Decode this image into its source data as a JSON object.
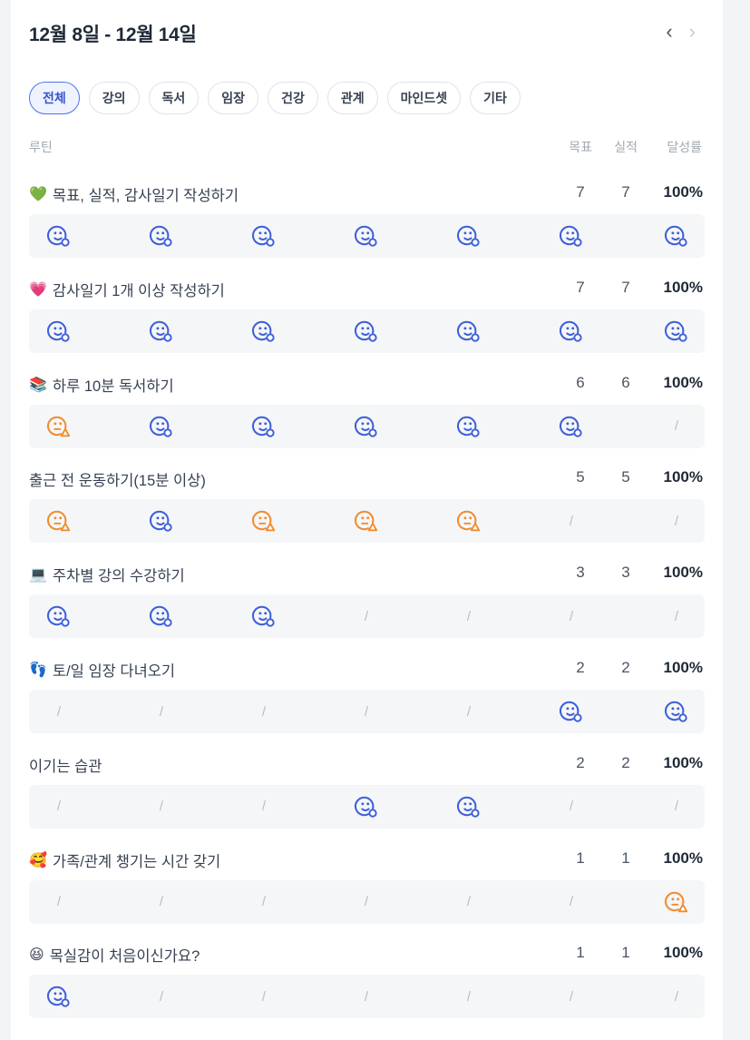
{
  "header": {
    "title": "12월 8일 - 12월 14일",
    "prev_glyph": "‹",
    "next_glyph": "›"
  },
  "tabs": [
    "전체",
    "강의",
    "독서",
    "임장",
    "건강",
    "관계",
    "마인드셋",
    "기타"
  ],
  "active_tab": 0,
  "columns": {
    "routine": "루틴",
    "goal": "목표",
    "actual": "실적",
    "rate": "달성률"
  },
  "colors": {
    "done": "#3d5fd9",
    "partial": "#f08c2e",
    "slash": "#b8bdc5",
    "accent": "#4f73e8"
  },
  "routines": [
    {
      "emoji": "💚",
      "name": "목표, 실적, 감사일기 작성하기",
      "goal": "7",
      "actual": "7",
      "rate": "100%",
      "days": [
        "done",
        "done",
        "done",
        "done",
        "done",
        "done",
        "done"
      ]
    },
    {
      "emoji": "💗",
      "name": "감사일기 1개 이상 작성하기",
      "goal": "7",
      "actual": "7",
      "rate": "100%",
      "days": [
        "done",
        "done",
        "done",
        "done",
        "done",
        "done",
        "done"
      ]
    },
    {
      "emoji": "📚",
      "name": "하루 10분 독서하기",
      "goal": "6",
      "actual": "6",
      "rate": "100%",
      "days": [
        "partial",
        "done",
        "done",
        "done",
        "done",
        "done",
        "none"
      ]
    },
    {
      "emoji": "",
      "name": "출근 전 운동하기(15분 이상)",
      "goal": "5",
      "actual": "5",
      "rate": "100%",
      "days": [
        "partial",
        "done",
        "partial",
        "partial",
        "partial",
        "none",
        "none"
      ]
    },
    {
      "emoji": "💻",
      "name": "주차별 강의 수강하기",
      "goal": "3",
      "actual": "3",
      "rate": "100%",
      "days": [
        "done",
        "done",
        "done",
        "none",
        "none",
        "none",
        "none"
      ]
    },
    {
      "emoji": "👣",
      "name": "토/일 임장 다녀오기",
      "goal": "2",
      "actual": "2",
      "rate": "100%",
      "days": [
        "none",
        "none",
        "none",
        "none",
        "none",
        "done",
        "done"
      ]
    },
    {
      "emoji": "",
      "name": "이기는 습관",
      "goal": "2",
      "actual": "2",
      "rate": "100%",
      "days": [
        "none",
        "none",
        "none",
        "done",
        "done",
        "none",
        "none"
      ]
    },
    {
      "emoji": "🥰",
      "name": "가족/관계 챙기는 시간 갖기",
      "goal": "1",
      "actual": "1",
      "rate": "100%",
      "days": [
        "none",
        "none",
        "none",
        "none",
        "none",
        "none",
        "partial"
      ]
    },
    {
      "emoji": "😆",
      "name": "목실감이 처음이신가요?",
      "goal": "1",
      "actual": "1",
      "rate": "100%",
      "days": [
        "done",
        "none",
        "none",
        "none",
        "none",
        "none",
        "none"
      ]
    }
  ]
}
